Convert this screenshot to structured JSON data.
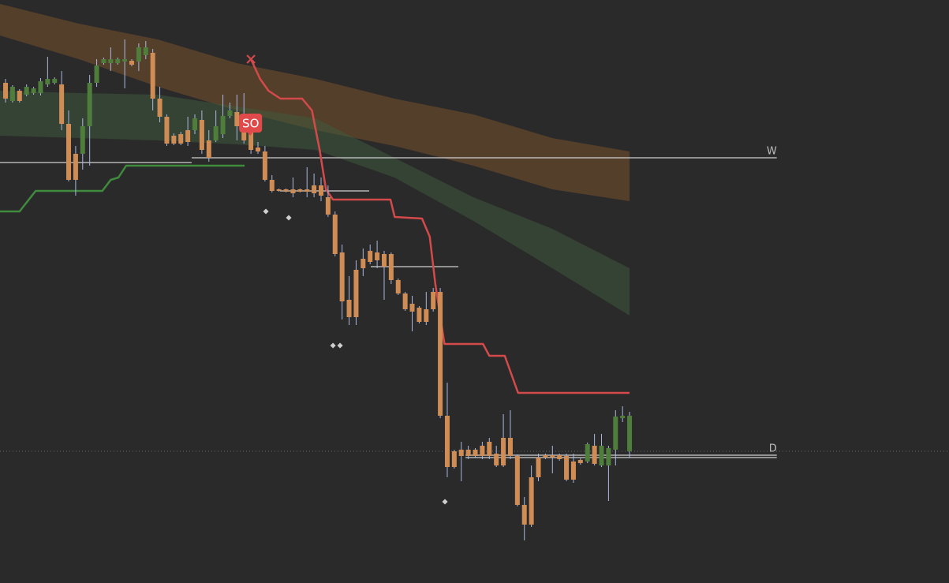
{
  "chart_data": {
    "type": "candlestick",
    "xlim": [
      -0.79,
      134.56
    ],
    "ylim": [
      0,
      739
    ],
    "up_color": "#4e7d3c",
    "down_color": "#cf8d55",
    "wick_color": "#a9b8e0",
    "candles": {
      "open": [
        634,
        611,
        624,
        619,
        621,
        621,
        632,
        634,
        632,
        582,
        544,
        544,
        579,
        634,
        659,
        659,
        659,
        661,
        662,
        661,
        669,
        672,
        614,
        591,
        567,
        569,
        574,
        574,
        587,
        561,
        561,
        569,
        592,
        597,
        579,
        579,
        552,
        547,
        511,
        499,
        499,
        499,
        499,
        499,
        504,
        504,
        489,
        467,
        419,
        359,
        397,
        411,
        421,
        419,
        417,
        417,
        384,
        367,
        354,
        349,
        347,
        369,
        369,
        212,
        167,
        169,
        169,
        169,
        174,
        179,
        164,
        184,
        184,
        161,
        99,
        134,
        159,
        162,
        162,
        162,
        161,
        154,
        156,
        154,
        174,
        149,
        149,
        169,
        209,
        167
      ],
      "high": [
        639,
        631,
        626,
        632,
        629,
        640,
        667,
        641,
        649,
        599,
        554,
        589,
        644,
        664,
        666,
        679,
        666,
        689,
        664,
        684,
        687,
        677,
        629,
        594,
        570,
        572,
        591,
        594,
        599,
        574,
        599,
        619,
        609,
        619,
        621,
        589,
        559,
        554,
        517,
        500,
        500,
        514,
        500,
        527,
        519,
        514,
        504,
        471,
        429,
        389,
        409,
        424,
        429,
        434,
        421,
        419,
        386,
        369,
        364,
        351,
        369,
        374,
        374,
        254,
        169,
        179,
        174,
        171,
        179,
        184,
        174,
        214,
        219,
        163,
        109,
        149,
        164,
        164,
        174,
        164,
        164,
        164,
        158,
        178,
        189,
        189,
        174,
        219,
        224,
        217
      ],
      "low": [
        609,
        609,
        609,
        617,
        619,
        618,
        629,
        632,
        574,
        509,
        491,
        524,
        529,
        629,
        657,
        649,
        657,
        627,
        655,
        649,
        664,
        599,
        584,
        554,
        555,
        555,
        554,
        569,
        544,
        534,
        559,
        564,
        589,
        561,
        557,
        544,
        544,
        509,
        495,
        496,
        495,
        489,
        495,
        489,
        489,
        484,
        464,
        414,
        334,
        327,
        327,
        389,
        404,
        399,
        359,
        379,
        365,
        345,
        319,
        329,
        327,
        344,
        209,
        134,
        145,
        129,
        157,
        159,
        157,
        157,
        147,
        147,
        157,
        97,
        54,
        71,
        129,
        157,
        139,
        155,
        129,
        127,
        150,
        152,
        149,
        147,
        104,
        149,
        204,
        159
      ],
      "close": [
        614,
        629,
        611,
        629,
        627,
        636,
        639,
        639,
        582,
        511,
        511,
        579,
        634,
        656,
        664,
        664,
        664,
        664,
        657,
        679,
        679,
        614,
        591,
        557,
        557,
        557,
        559,
        589,
        549,
        539,
        579,
        592,
        599,
        579,
        561,
        549,
        547,
        511,
        497,
        497,
        496,
        494,
        496,
        496,
        494,
        491,
        467,
        417,
        357,
        337,
        337,
        399,
        407,
        409,
        401,
        384,
        367,
        347,
        344,
        331,
        331,
        347,
        212,
        147,
        147,
        161,
        161,
        161,
        161,
        161,
        149,
        149,
        161,
        99,
        74,
        74,
        134,
        159,
        159,
        157,
        131,
        131,
        152,
        176,
        151,
        174,
        171,
        211,
        212,
        212
      ]
    },
    "bands": [
      {
        "color": "rgba(125,84,42,0.5)",
        "x": [
          -0.79,
          10.46,
          21.72,
          32.97,
          44.22,
          55.47,
          66.72,
          77.97,
          89.0
        ],
        "upper": [
          734,
          709,
          689,
          659,
          639,
          614,
          594,
          564,
          547
        ],
        "lower": [
          694,
          664,
          629,
          599,
          574,
          554,
          529,
          499,
          484
        ]
      },
      {
        "color": "rgba(62,92,60,0.5)",
        "x": [
          -0.79,
          10.46,
          21.72,
          32.97,
          44.22,
          55.47,
          66.72,
          77.97,
          89.0
        ],
        "upper": [
          624,
          621,
          619,
          604,
          589,
          539,
          489,
          449,
          399
        ],
        "lower": [
          567,
          564,
          561,
          556,
          549,
          514,
          459,
          399,
          339
        ]
      }
    ],
    "lines": [
      {
        "color": "#3f8a3c",
        "x": [
          -0.79,
          2.0,
          4.3,
          13.8,
          15.0,
          16.1,
          17.2,
          34.1
        ],
        "values": [
          471,
          471,
          497,
          497,
          511,
          514,
          529,
          529
        ]
      },
      {
        "color": "#d44a4a",
        "x": [
          35.0,
          36.3,
          37.5,
          39.2,
          42.3,
          43.7,
          44.8,
          45.7,
          46.7,
          54.9,
          55.5,
          59.4,
          60.5,
          61.3,
          62.6,
          68.1,
          69.0,
          71.2,
          73.1,
          89.0
        ],
        "values": [
          664,
          639,
          624,
          614,
          614,
          599,
          549,
          499,
          486,
          486,
          464,
          462,
          439,
          379,
          303,
          303,
          288,
          288,
          241,
          241
        ]
      }
    ],
    "levels": [
      {
        "value": 539,
        "from": 26.55,
        "to": 110.0,
        "color": "#d0d0d0",
        "label": "W"
      },
      {
        "value": 533,
        "from": -0.79,
        "to": 26.55,
        "color": "#d0d0d0"
      },
      {
        "value": 497,
        "from": 39.15,
        "to": 51.87,
        "color": "#d0d0d0"
      },
      {
        "value": 401,
        "from": 52.09,
        "to": 64.58,
        "color": "#d0d0d0"
      },
      {
        "value": 162,
        "from": 65.6,
        "to": 110.0,
        "color": "#d0d0d0",
        "label": "D"
      },
      {
        "value": 159,
        "from": 65.6,
        "to": 110.0,
        "color": "#d0d0d0"
      }
    ],
    "price_line": 167,
    "markers": {
      "color": "#cfcfcf",
      "x": [
        37.13,
        40.39,
        46.7,
        47.71,
        62.67
      ],
      "values": [
        471,
        463,
        301,
        301,
        103
      ]
    },
    "annotations": [
      {
        "text": "SO",
        "x": 34.9,
        "y": 583,
        "color": "#e04a4a"
      }
    ]
  }
}
